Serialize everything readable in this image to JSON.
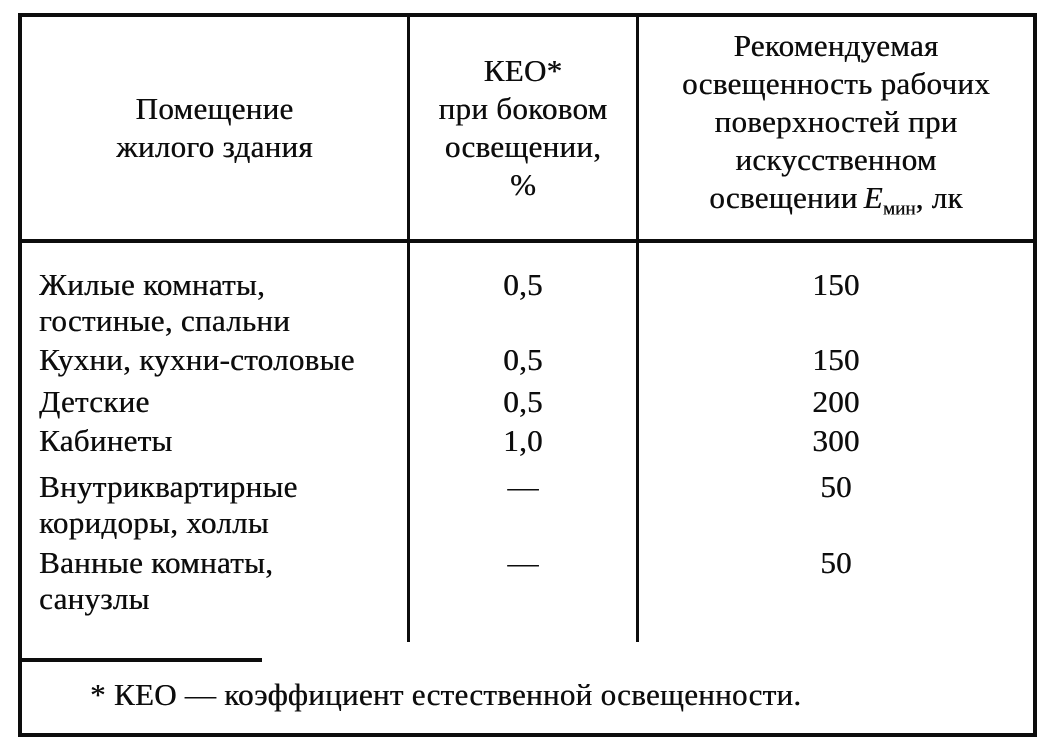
{
  "colors": {
    "ink": "#0d0d0d",
    "paper": "#ffffff"
  },
  "table": {
    "header": {
      "col1": "Помещение жилого здания",
      "col2": {
        "lines": [
          "КЕО*",
          "при боковом",
          "освещении,",
          "%"
        ]
      },
      "col3": {
        "lines": [
          "Рекомендуемая",
          "освещенность рабочих",
          "поверхностей при",
          "искусственном"
        ],
        "last_line": {
          "prefix": "освещении",
          "symbol": "E",
          "subscript": "мин",
          "suffix": ", лк"
        }
      }
    },
    "rows": [
      {
        "room": "Жилые комнаты, гостиные, спальни",
        "keo": "0,5",
        "lux": "150"
      },
      {
        "room": "Кухни, кухни-столовые",
        "keo": "0,5",
        "lux": "150"
      },
      {
        "room": "Детские",
        "keo": "0,5",
        "lux": "200"
      },
      {
        "room": "Кабинеты",
        "keo": "1,0",
        "lux": "300"
      },
      {
        "room": "Внутриквартирные коридоры, холлы",
        "keo": "—",
        "lux": "50"
      },
      {
        "room": "Ванные комнаты, санузлы",
        "keo": "—",
        "lux": "50"
      }
    ],
    "footnote": "* КЕО — коэффициент естественной освещенности."
  }
}
